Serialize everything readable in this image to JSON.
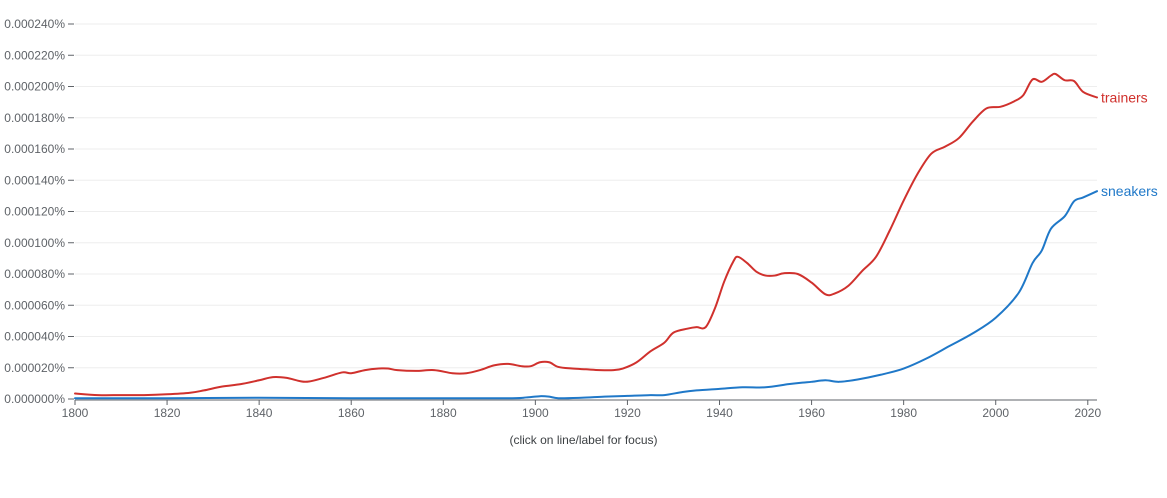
{
  "chart_data": {
    "type": "line",
    "xlim": [
      1800,
      2022
    ],
    "ylim": [
      0,
      0.00024
    ],
    "x_ticks": [
      1800,
      1820,
      1840,
      1860,
      1880,
      1900,
      1920,
      1940,
      1960,
      1980,
      2000,
      2020
    ],
    "y_ticks": [
      "0.000000%",
      "0.000020%",
      "0.000040%",
      "0.000060%",
      "0.000080%",
      "0.000100%",
      "0.000120%",
      "0.000140%",
      "0.000160%",
      "0.000180%",
      "0.000200%",
      "0.000220%",
      "0.000240%"
    ],
    "grid": true,
    "series": [
      {
        "name": "trainers",
        "color": "#d0312d",
        "x": [
          1800,
          1805,
          1810,
          1815,
          1820,
          1825,
          1828,
          1832,
          1836,
          1840,
          1843,
          1846,
          1850,
          1854,
          1858,
          1860,
          1863,
          1866,
          1868,
          1870,
          1874,
          1878,
          1882,
          1885,
          1888,
          1891,
          1894,
          1897,
          1899,
          1901,
          1903,
          1905,
          1908,
          1911,
          1914,
          1917,
          1919,
          1922,
          1925,
          1928,
          1930,
          1933,
          1935,
          1937,
          1939,
          1941,
          1943,
          1944,
          1946,
          1948,
          1950,
          1952,
          1954,
          1957,
          1960,
          1963,
          1965,
          1968,
          1971,
          1974,
          1977,
          1980,
          1983,
          1986,
          1989,
          1992,
          1995,
          1998,
          2001,
          2004,
          2006,
          2008,
          2010,
          2012,
          2013,
          2015,
          2017,
          2019,
          2022
        ],
        "y": [
          3.5e-06,
          2.5e-06,
          2.5e-06,
          2.5e-06,
          3e-06,
          4e-06,
          5.5e-06,
          8e-06,
          9.5e-06,
          1.2e-05,
          1.4e-05,
          1.35e-05,
          1.1e-05,
          1.35e-05,
          1.7e-05,
          1.65e-05,
          1.85e-05,
          1.95e-05,
          1.95e-05,
          1.85e-05,
          1.8e-05,
          1.85e-05,
          1.65e-05,
          1.65e-05,
          1.85e-05,
          2.15e-05,
          2.25e-05,
          2.1e-05,
          2.1e-05,
          2.35e-05,
          2.35e-05,
          2.05e-05,
          1.95e-05,
          1.9e-05,
          1.85e-05,
          1.85e-05,
          1.95e-05,
          2.35e-05,
          3.05e-05,
          3.6e-05,
          4.25e-05,
          4.5e-05,
          4.6e-05,
          4.6e-05,
          5.8e-05,
          7.5e-05,
          8.8e-05,
          9.1e-05,
          8.7e-05,
          8.15e-05,
          7.9e-05,
          7.9e-05,
          8.05e-05,
          8e-05,
          7.45e-05,
          6.7e-05,
          6.75e-05,
          7.25e-05,
          8.2e-05,
          9.1e-05,
          0.000108,
          0.000127,
          0.000144,
          0.000157,
          0.0001615,
          0.000167,
          0.0001775,
          0.000186,
          0.000187,
          0.0001905,
          0.0001945,
          0.0002045,
          0.000203,
          0.000207,
          0.000208,
          0.000204,
          0.0002035,
          0.0001965,
          0.000193
        ]
      },
      {
        "name": "sneakers",
        "color": "#1f78c8",
        "x": [
          1800,
          1820,
          1840,
          1860,
          1880,
          1895,
          1898,
          1901,
          1903,
          1905,
          1910,
          1915,
          1920,
          1925,
          1928,
          1932,
          1935,
          1940,
          1945,
          1950,
          1955,
          1958,
          1960,
          1963,
          1966,
          1970,
          1975,
          1980,
          1985,
          1990,
          1995,
          2000,
          2005,
          2008,
          2010,
          2012,
          2015,
          2017,
          2019,
          2022
        ],
        "y": [
          5e-07,
          5e-07,
          8e-07,
          5e-07,
          5e-07,
          5e-07,
          1e-06,
          1.8e-06,
          1.5e-06,
          5e-07,
          8e-07,
          1.5e-06,
          2e-06,
          2.5e-06,
          2.5e-06,
          4.5e-06,
          5.5e-06,
          6.5e-06,
          7.5e-06,
          7.5e-06,
          9.5e-06,
          1.05e-05,
          1.1e-05,
          1.2e-05,
          1.1e-05,
          1.25e-05,
          1.55e-05,
          1.95e-05,
          2.6e-05,
          3.4e-05,
          4.2e-05,
          5.2e-05,
          6.8e-05,
          8.7e-05,
          9.5e-05,
          0.000109,
          0.000117,
          0.0001265,
          0.000129,
          0.000133
        ]
      }
    ]
  },
  "footer": {
    "hint": "(click on line/label for focus)"
  }
}
